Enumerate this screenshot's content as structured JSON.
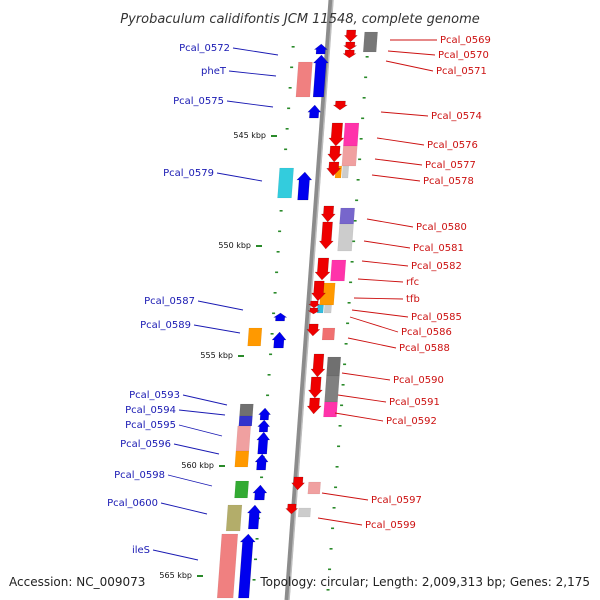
{
  "title": "Pyrobaculum calidifontis JCM 11548, complete genome",
  "footer": {
    "accession": "Accession: NC_009073",
    "topology": "Topology: circular; Length: 2,009,313 bp; Genes: 2,175"
  },
  "colors": {
    "forward_strand_genes": "#0000ee",
    "reverse_strand_genes": "#ee0000",
    "backbone": "#999999",
    "tick": "#2a8a2a",
    "left_labels": "#1a1ab3",
    "right_labels": "#cc1111"
  },
  "scale_labels": [
    "545 kbp",
    "550 kbp",
    "555 kbp",
    "560 kbp",
    "565 kbp"
  ],
  "left_genes": [
    "Pcal_0572",
    "pheT",
    "Pcal_0575",
    "Pcal_0579",
    "Pcal_0587",
    "Pcal_0589",
    "Pcal_0593",
    "Pcal_0594",
    "Pcal_0595",
    "Pcal_0596",
    "Pcal_0598",
    "Pcal_0600",
    "ileS"
  ],
  "right_genes": [
    "Pcal_0569",
    "Pcal_0570",
    "Pcal_0571",
    "Pcal_0574",
    "Pcal_0576",
    "Pcal_0577",
    "Pcal_0578",
    "Pcal_0580",
    "Pcal_0581",
    "Pcal_0582",
    "rfc",
    "tfb",
    "Pcal_0585",
    "Pcal_0586",
    "Pcal_0588",
    "Pcal_0590",
    "Pcal_0591",
    "Pcal_0592",
    "Pcal_0597",
    "Pcal_0599"
  ]
}
